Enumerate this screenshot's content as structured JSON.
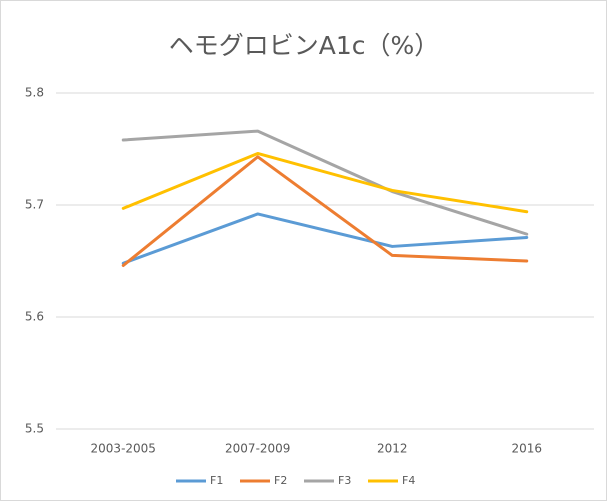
{
  "chart_data": {
    "type": "line",
    "title": "ヘモグロビンA1c（%）",
    "categories": [
      "2003-2005",
      "2007-2009",
      "2012",
      "2016"
    ],
    "series": [
      {
        "name": "F1",
        "color": "#5b9bd5",
        "values": [
          5.648,
          5.692,
          5.663,
          5.671
        ]
      },
      {
        "name": "F2",
        "color": "#ed7d31",
        "values": [
          5.646,
          5.743,
          5.655,
          5.65
        ]
      },
      {
        "name": "F3",
        "color": "#a5a5a5",
        "values": [
          5.758,
          5.766,
          5.712,
          5.674
        ]
      },
      {
        "name": "F4",
        "color": "#ffc000",
        "values": [
          5.697,
          5.746,
          5.713,
          5.694
        ]
      }
    ],
    "ylim": [
      5.5,
      5.8
    ],
    "yticks": [
      5.5,
      5.6,
      5.7,
      5.8
    ],
    "grid": true,
    "legend": "bottom"
  }
}
